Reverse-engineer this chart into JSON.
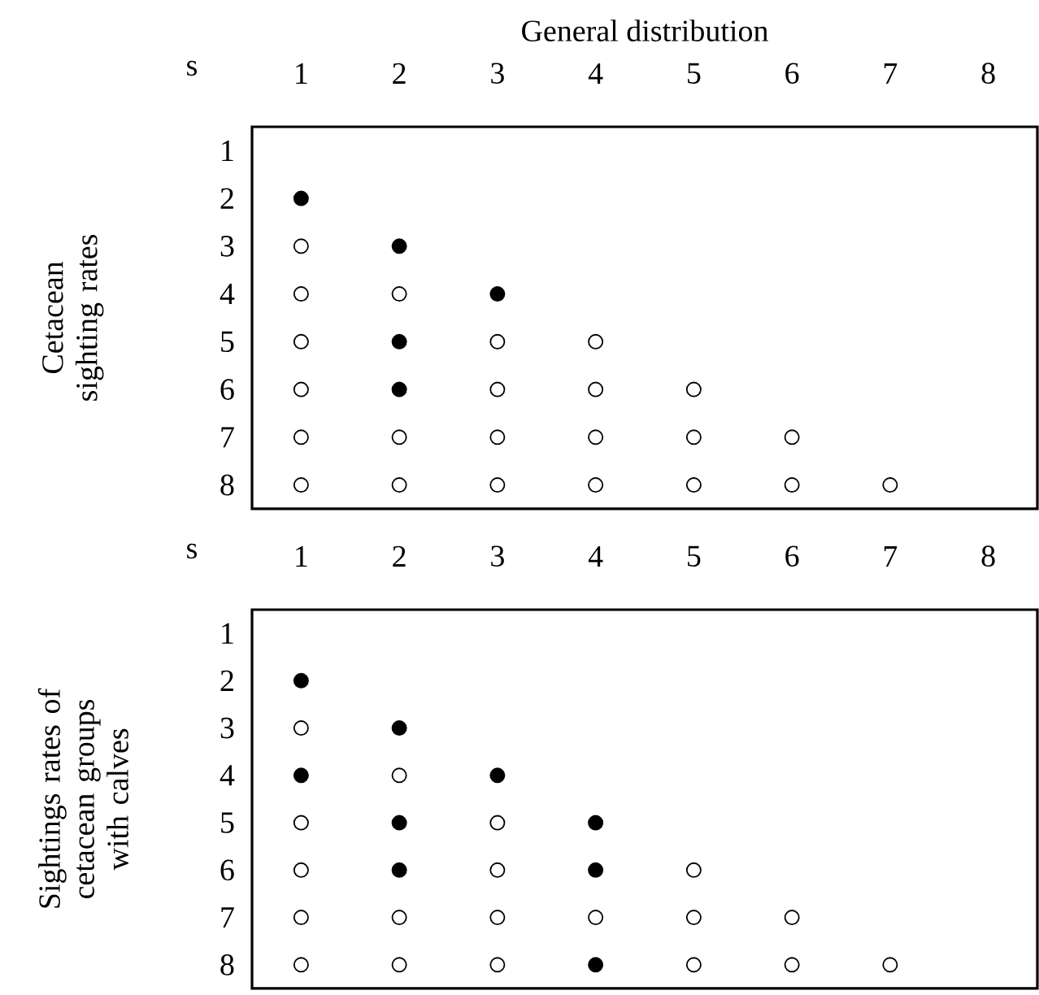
{
  "chart_data": [
    {
      "type": "scatter",
      "title": "General distribution",
      "ylabel": "Cetacean sighting rates",
      "annotations": [
        "s"
      ],
      "xlim": [
        0.5,
        8.5
      ],
      "ylim": [
        8.5,
        0.5
      ],
      "xticks": [
        1,
        2,
        3,
        4,
        5,
        6,
        7,
        8
      ],
      "yticks": [
        1,
        2,
        3,
        4,
        5,
        6,
        7,
        8
      ],
      "marker": "circle",
      "series": [
        {
          "color": "#000000",
          "x": [
            1,
            2,
            3,
            2,
            2
          ],
          "values": [
            2,
            3,
            4,
            5,
            6
          ]
        },
        {
          "color": "#ffffff",
          "x": [
            1,
            1,
            2,
            1,
            3,
            4,
            1,
            3,
            4,
            5,
            1,
            2,
            3,
            4,
            5,
            6,
            1,
            2,
            3,
            4,
            5,
            6,
            7
          ],
          "values": [
            3,
            4,
            4,
            5,
            5,
            5,
            6,
            6,
            6,
            6,
            7,
            7,
            7,
            7,
            7,
            7,
            8,
            8,
            8,
            8,
            8,
            8,
            8
          ]
        }
      ]
    },
    {
      "type": "scatter",
      "ylabel": "Sightings rates of cetacean groups with calves",
      "annotations": [
        "s"
      ],
      "xlim": [
        0.5,
        8.5
      ],
      "ylim": [
        8.5,
        0.5
      ],
      "xticks": [
        1,
        2,
        3,
        4,
        5,
        6,
        7,
        8
      ],
      "yticks": [
        1,
        2,
        3,
        4,
        5,
        6,
        7,
        8
      ],
      "marker": "circle",
      "series": [
        {
          "color": "#000000",
          "x": [
            1,
            2,
            1,
            3,
            2,
            4,
            2,
            4,
            4
          ],
          "values": [
            2,
            3,
            4,
            4,
            5,
            5,
            6,
            6,
            8
          ]
        },
        {
          "color": "#ffffff",
          "x": [
            1,
            2,
            1,
            3,
            1,
            3,
            5,
            1,
            2,
            3,
            4,
            5,
            6,
            1,
            2,
            3,
            5,
            6,
            7
          ],
          "values": [
            3,
            4,
            5,
            5,
            6,
            6,
            6,
            7,
            7,
            7,
            7,
            7,
            7,
            8,
            8,
            8,
            8,
            8,
            8
          ]
        }
      ]
    }
  ]
}
